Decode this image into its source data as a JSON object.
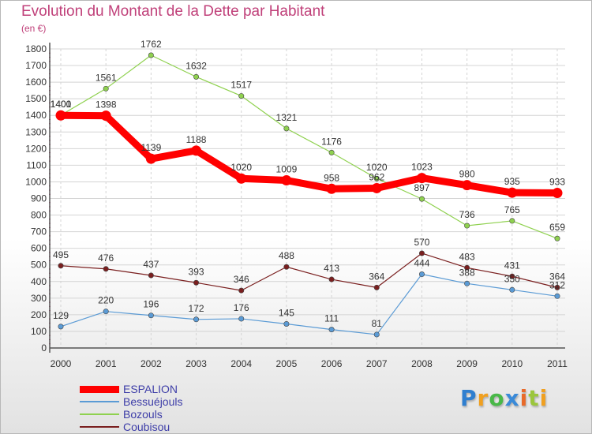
{
  "chart_data": {
    "type": "line",
    "title": "Evolution du Montant de la Dette par Habitant",
    "ylabel": "(en €)",
    "xlabel": "",
    "x": [
      "2000",
      "2001",
      "2002",
      "2003",
      "2004",
      "2005",
      "2006",
      "2007",
      "2008",
      "2009",
      "2010",
      "2011"
    ],
    "ylim": [
      0,
      1800
    ],
    "yticks": [
      0,
      100,
      200,
      300,
      400,
      500,
      600,
      700,
      800,
      900,
      1000,
      1100,
      1200,
      1300,
      1400,
      1500,
      1600,
      1700,
      1800
    ],
    "grid": true,
    "legend_position": "bottom-left",
    "series": [
      {
        "name": "ESPALION",
        "color": "#ff0000",
        "values": [
          1400,
          1398,
          1139,
          1188,
          1020,
          1009,
          958,
          962,
          1023,
          980,
          935,
          933
        ]
      },
      {
        "name": "Bessuéjouls",
        "color": "#5b9bd5",
        "values": [
          129,
          220,
          196,
          172,
          176,
          145,
          111,
          81,
          444,
          388,
          350,
          312
        ]
      },
      {
        "name": "Bozouls",
        "color": "#8fd14f",
        "values": [
          1401,
          1561,
          1762,
          1632,
          1517,
          1321,
          1176,
          1020,
          897,
          736,
          765,
          659
        ]
      },
      {
        "name": "Coubisou",
        "color": "#7a1f1f",
        "values": [
          495,
          476,
          437,
          393,
          346,
          488,
          413,
          364,
          570,
          483,
          431,
          364
        ]
      }
    ]
  },
  "logo": {
    "letters": [
      "P",
      "r",
      "o",
      "x",
      "i",
      "t",
      "i"
    ],
    "colors": [
      "#2f7fd0",
      "#f0a020",
      "#49b848",
      "#3a8ad8",
      "#e86a2a",
      "#9bc63c",
      "#f0a020"
    ]
  }
}
